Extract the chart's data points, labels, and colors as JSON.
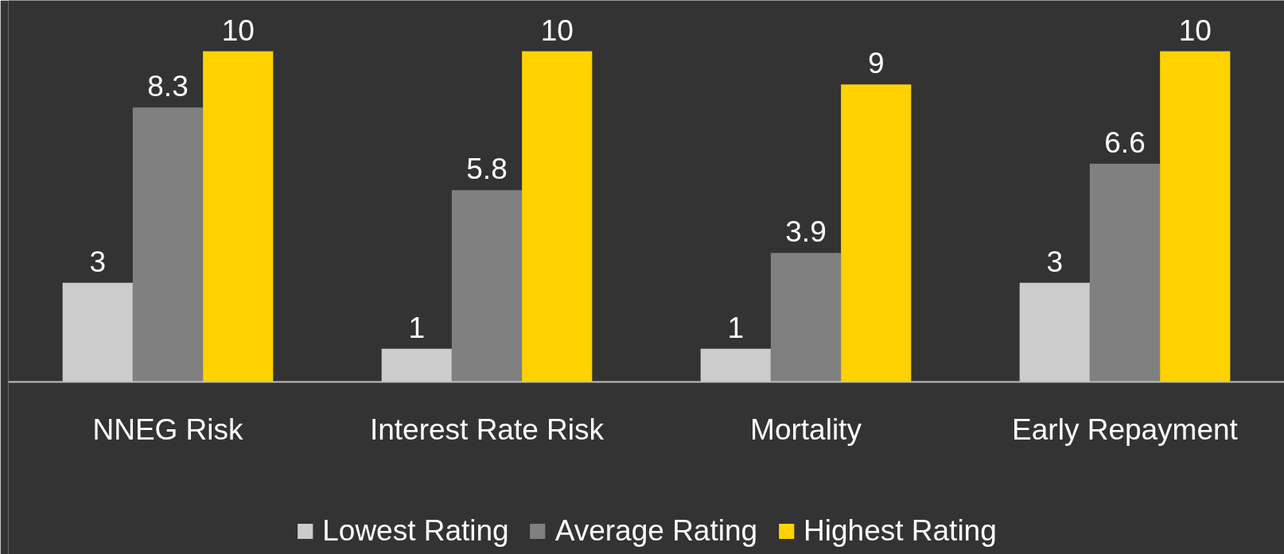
{
  "chart_data": {
    "type": "bar",
    "categories": [
      "NNEG Risk",
      "Interest Rate Risk",
      "Mortality",
      "Early Repayment"
    ],
    "series": [
      {
        "name": "Lowest Rating",
        "color": "#cccccc",
        "values": [
          3,
          1,
          1,
          3
        ]
      },
      {
        "name": "Average Rating",
        "color": "#808080",
        "values": [
          8.3,
          5.8,
          3.9,
          6.6
        ]
      },
      {
        "name": "Highest Rating",
        "color": "#ffd200",
        "values": [
          10,
          10,
          9,
          10
        ]
      }
    ],
    "data_labels": true,
    "legend": "bottom",
    "grid": false,
    "tick_labels": "x"
  }
}
